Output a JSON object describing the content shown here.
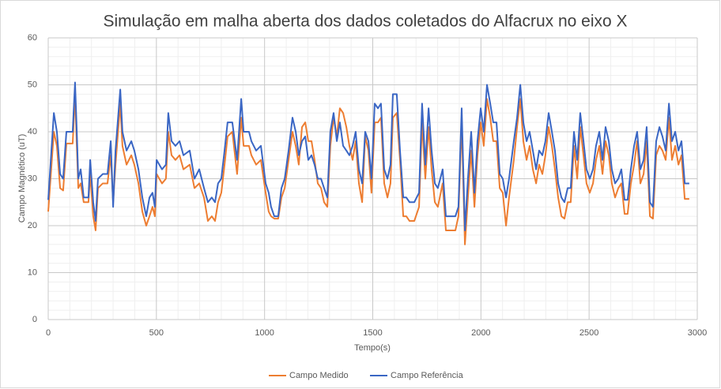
{
  "chart_data": {
    "type": "line",
    "title": "Simulação em malha aberta dos dados coletados do Alfacrux no eixo X",
    "x_label": "Tempo(s)",
    "y_label": "Campo Magnético (uT)",
    "xlim": [
      0,
      3000
    ],
    "xticks": [
      0,
      500,
      1000,
      1500,
      2000,
      2500,
      3000
    ],
    "ylim": [
      0,
      60
    ],
    "yticks": [
      0,
      10,
      20,
      30,
      40,
      50,
      60
    ],
    "grid": true,
    "legend": "bottom",
    "x": [
      0,
      26,
      40,
      55,
      69,
      84,
      113,
      124,
      132,
      139,
      150,
      164,
      186,
      194,
      208,
      219,
      230,
      252,
      274,
      289,
      300,
      311,
      333,
      343,
      362,
      384,
      398,
      417,
      435,
      453,
      468,
      482,
      493,
      501,
      526,
      544,
      555,
      570,
      588,
      607,
      625,
      654,
      676,
      698,
      720,
      738,
      756,
      771,
      785,
      800,
      815,
      829,
      851,
      873,
      892,
      903,
      928,
      939,
      961,
      983,
      1005,
      1019,
      1030,
      1045,
      1063,
      1078,
      1093,
      1111,
      1129,
      1144,
      1158,
      1173,
      1188,
      1202,
      1217,
      1231,
      1246,
      1261,
      1275,
      1290,
      1304,
      1319,
      1334,
      1348,
      1363,
      1378,
      1392,
      1407,
      1421,
      1436,
      1451,
      1465,
      1480,
      1494,
      1509,
      1524,
      1538,
      1553,
      1568,
      1582,
      1593,
      1611,
      1626,
      1641,
      1655,
      1670,
      1692,
      1714,
      1728,
      1743,
      1758,
      1772,
      1787,
      1801,
      1823,
      1838,
      1860,
      1882,
      1896,
      1911,
      1926,
      1940,
      1955,
      1970,
      1984,
      1999,
      2013,
      2028,
      2043,
      2057,
      2072,
      2087,
      2101,
      2116,
      2130,
      2152,
      2167,
      2182,
      2196,
      2211,
      2225,
      2240,
      2255,
      2269,
      2284,
      2298,
      2313,
      2328,
      2342,
      2357,
      2372,
      2386,
      2401,
      2415,
      2430,
      2445,
      2459,
      2474,
      2488,
      2503,
      2518,
      2532,
      2547,
      2562,
      2576,
      2591,
      2605,
      2620,
      2635,
      2649,
      2664,
      2678,
      2693,
      2708,
      2722,
      2737,
      2752,
      2766,
      2781,
      2795,
      2810,
      2825,
      2839,
      2854,
      2869,
      2883,
      2898,
      2913,
      2927,
      2942,
      2963
    ],
    "series": [
      {
        "name": "Campo Medido",
        "color": "#ed7d31",
        "values": [
          23,
          40,
          37,
          28,
          27.5,
          37.5,
          37.5,
          48,
          37,
          28,
          29,
          25,
          25,
          31,
          22,
          19,
          28,
          29,
          29,
          35,
          25,
          33,
          46,
          37,
          33,
          35,
          33,
          29,
          23,
          20,
          22,
          24,
          22,
          31,
          29,
          30,
          40,
          35,
          34,
          35,
          32,
          33,
          28,
          29,
          26,
          21,
          22,
          21,
          25,
          27,
          33,
          39,
          40,
          31,
          43,
          37,
          37,
          35,
          33,
          34,
          27,
          23,
          22,
          21.5,
          21.5,
          26,
          28,
          34,
          40,
          37,
          33,
          41,
          42,
          38,
          38,
          34,
          29,
          28,
          25,
          24,
          37,
          43,
          39,
          45,
          44,
          41,
          37,
          34,
          38,
          29,
          25,
          39,
          36,
          27,
          42,
          42,
          43,
          29,
          26,
          29,
          43,
          44,
          34,
          22,
          22,
          21,
          21,
          24,
          42,
          30,
          41,
          32,
          25,
          24,
          29,
          19,
          19,
          19,
          22,
          42,
          16,
          26,
          36,
          24,
          35,
          42,
          37,
          47,
          43,
          38,
          38,
          28,
          27,
          20,
          26,
          34,
          41,
          47,
          38,
          34,
          37,
          32,
          29,
          33,
          31,
          35,
          41,
          37,
          32,
          26,
          22,
          21.5,
          25,
          25,
          37,
          30,
          41,
          35,
          29,
          27,
          29,
          34,
          37,
          31,
          38,
          35,
          29,
          26,
          28,
          29,
          22.5,
          22.5,
          29,
          33,
          38,
          29,
          31,
          38,
          22,
          21.5,
          35,
          37,
          36,
          34,
          43,
          34,
          37,
          33,
          35,
          25.7,
          25.7
        ]
      },
      {
        "name": "Campo Referência",
        "color": "#3a66c4",
        "values": [
          25.5,
          44,
          40,
          31,
          30,
          40,
          40,
          50.5,
          40,
          30,
          32,
          26,
          26,
          34,
          25,
          21,
          30,
          31,
          31,
          38,
          24,
          36,
          49,
          40,
          36,
          38,
          36,
          32,
          26,
          22,
          26,
          27,
          24,
          34,
          32,
          33,
          44,
          38,
          37,
          38,
          35,
          36,
          30,
          32,
          28,
          25,
          26,
          25,
          29,
          30,
          36,
          42,
          42,
          34,
          47,
          40,
          40,
          38,
          36,
          37,
          29,
          27,
          24,
          22,
          22,
          28,
          30,
          36,
          43,
          40,
          35,
          38,
          39,
          34,
          35,
          33,
          30,
          30,
          28,
          26,
          40,
          44,
          38,
          42,
          37,
          36,
          35,
          37,
          40,
          32,
          29,
          40,
          38,
          30,
          46,
          45,
          46,
          32,
          30,
          33,
          48,
          48,
          36,
          26,
          26,
          25,
          25,
          27,
          46,
          33,
          45,
          36,
          29,
          28,
          32,
          22,
          22,
          22,
          24,
          45,
          19,
          30,
          40,
          27,
          38,
          45,
          40,
          50,
          46,
          42,
          42,
          31,
          30,
          26,
          30,
          38,
          43,
          50,
          42,
          38,
          40,
          36,
          32,
          36,
          35,
          38,
          44,
          40,
          36,
          29,
          26,
          25,
          28,
          28,
          40,
          34,
          44,
          38,
          32,
          30,
          32,
          37,
          40,
          34,
          41,
          38,
          32,
          29,
          30,
          32,
          25.5,
          25.5,
          32,
          37,
          40,
          32,
          34,
          41,
          25,
          24,
          38,
          41,
          39,
          36,
          46,
          38,
          40,
          36,
          38,
          29,
          29
        ]
      }
    ]
  }
}
